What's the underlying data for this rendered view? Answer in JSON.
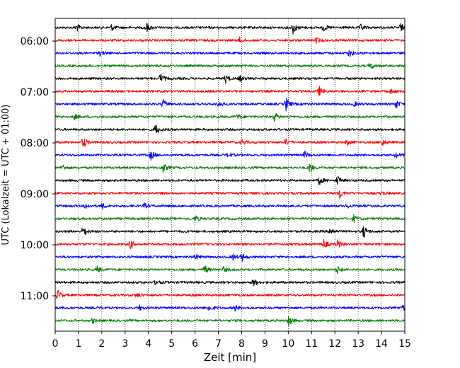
{
  "chart_data": {
    "type": "line",
    "title": "",
    "xlabel": "Zeit  [min]",
    "ylabel": "UTC (Lokalzeit = UTC + 01:00)",
    "xlim": [
      0,
      15
    ],
    "x_ticks": [
      0,
      1,
      2,
      3,
      4,
      5,
      6,
      7,
      8,
      9,
      10,
      11,
      12,
      13,
      14,
      15
    ],
    "grid": "vertical dotted at each minute",
    "start_time": "05:45",
    "trace_interval_min": 15,
    "y_tick_labels": [
      "06:00",
      "07:00",
      "08:00",
      "09:00",
      "10:00",
      "11:00"
    ],
    "trace_colors_cycle": [
      "#000000",
      "#ff0000",
      "#0000ff",
      "#008000"
    ],
    "series": [
      {
        "color": "#000000",
        "bursts": [
          [
            0.9,
            0.8
          ],
          [
            2.4,
            0.6
          ],
          [
            3.9,
            1.0
          ],
          [
            10.2,
            1.2
          ],
          [
            11.5,
            0.7
          ],
          [
            13.1,
            0.6
          ],
          [
            14.8,
            0.9
          ]
        ]
      },
      {
        "color": "#ff0000",
        "bursts": [
          [
            7.9,
            0.6
          ],
          [
            11.2,
            0.5
          ]
        ]
      },
      {
        "color": "#0000ff",
        "bursts": [
          [
            1.9,
            0.5
          ],
          [
            12.6,
            0.9
          ]
        ]
      },
      {
        "color": "#008000",
        "bursts": [
          [
            13.5,
            0.7
          ]
        ]
      },
      {
        "color": "#000000",
        "bursts": [
          [
            4.5,
            1.1
          ],
          [
            7.3,
            0.9
          ],
          [
            7.9,
            0.6
          ]
        ]
      },
      {
        "color": "#ff0000",
        "bursts": [
          [
            11.3,
            1.0
          ],
          [
            14.4,
            0.5
          ]
        ]
      },
      {
        "color": "#0000ff",
        "bursts": [
          [
            4.6,
            1.0
          ],
          [
            7.0,
            0.7
          ],
          [
            9.9,
            1.3
          ],
          [
            12.8,
            0.5
          ],
          [
            14.6,
            0.9
          ]
        ]
      },
      {
        "color": "#008000",
        "bursts": [
          [
            0.8,
            0.5
          ],
          [
            7.8,
            0.6
          ],
          [
            9.4,
            0.9
          ]
        ]
      },
      {
        "color": "#000000",
        "bursts": [
          [
            4.3,
            1.1
          ]
        ]
      },
      {
        "color": "#ff0000",
        "bursts": [
          [
            1.2,
            1.2
          ],
          [
            8.0,
            0.6
          ],
          [
            9.9,
            0.7
          ],
          [
            12.5,
            0.6
          ],
          [
            14.0,
            0.8
          ]
        ]
      },
      {
        "color": "#0000ff",
        "bursts": [
          [
            4.1,
            0.9
          ],
          [
            7.4,
            0.6
          ],
          [
            10.7,
            0.7
          ],
          [
            14.6,
            0.6
          ]
        ]
      },
      {
        "color": "#008000",
        "bursts": [
          [
            0.3,
            0.6
          ],
          [
            4.6,
            1.0
          ],
          [
            10.9,
            1.0
          ]
        ]
      },
      {
        "color": "#000000",
        "bursts": [
          [
            11.3,
            1.0
          ],
          [
            12.1,
            1.0
          ]
        ]
      },
      {
        "color": "#ff0000",
        "bursts": [
          [
            12.2,
            0.9
          ],
          [
            14.0,
            0.4
          ]
        ]
      },
      {
        "color": "#0000ff",
        "bursts": [
          [
            1.3,
            0.6
          ],
          [
            2.0,
            0.6
          ],
          [
            3.8,
            0.5
          ],
          [
            12.5,
            0.4
          ]
        ]
      },
      {
        "color": "#008000",
        "bursts": [
          [
            6.0,
            0.6
          ],
          [
            12.8,
            0.7
          ]
        ]
      },
      {
        "color": "#000000",
        "bursts": [
          [
            1.2,
            1.1
          ],
          [
            11.8,
            0.9
          ],
          [
            13.2,
            1.4
          ]
        ]
      },
      {
        "color": "#ff0000",
        "bursts": [
          [
            3.2,
            1.0
          ],
          [
            11.5,
            1.0
          ],
          [
            12.1,
            0.9
          ]
        ]
      },
      {
        "color": "#0000ff",
        "bursts": [
          [
            6.0,
            0.6
          ],
          [
            7.6,
            0.7
          ],
          [
            8.0,
            0.8
          ]
        ]
      },
      {
        "color": "#008000",
        "bursts": [
          [
            1.8,
            0.6
          ],
          [
            6.4,
            0.9
          ],
          [
            7.2,
            0.5
          ],
          [
            12.1,
            0.7
          ]
        ]
      },
      {
        "color": "#000000",
        "bursts": [
          [
            4.3,
            0.5
          ],
          [
            8.5,
            0.8
          ]
        ]
      },
      {
        "color": "#ff0000",
        "bursts": [
          [
            0.1,
            1.0
          ],
          [
            3.5,
            0.4
          ]
        ]
      },
      {
        "color": "#0000ff",
        "bursts": [
          [
            3.6,
            0.5
          ],
          [
            6.6,
            0.8
          ],
          [
            7.7,
            0.6
          ],
          [
            14.9,
            0.7
          ]
        ]
      },
      {
        "color": "#008000",
        "bursts": [
          [
            1.6,
            0.5
          ],
          [
            10.0,
            1.0
          ]
        ]
      }
    ]
  }
}
